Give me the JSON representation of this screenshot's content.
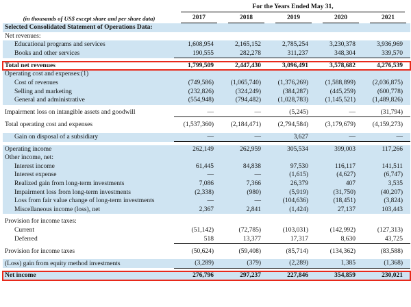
{
  "colors": {
    "row_highlight": "#cfe4f2",
    "annotation_red": "#e8291a"
  },
  "header": {
    "span_label": "For the Years Ended May 31,",
    "unit_note": "(in thousands of US$ except share and per share data)",
    "years": [
      "2017",
      "2018",
      "2019",
      "2020",
      "2021"
    ]
  },
  "rows": [
    {
      "label": "Selected Consolidated Statement of Operations Data:",
      "bold": true,
      "bg": "blue",
      "values": [
        "",
        "",
        "",
        "",
        ""
      ]
    },
    {
      "label": "Net revenues:",
      "bg": "white",
      "values": [
        "",
        "",
        "",
        "",
        ""
      ]
    },
    {
      "label": "Educational programs and services",
      "indent": 1,
      "bg": "blue",
      "values": [
        "1,608,954",
        "2,165,152",
        "2,785,254",
        "3,230,378",
        "3,936,969"
      ]
    },
    {
      "label": "Books and other services",
      "indent": 1,
      "bg": "blue",
      "rule": true,
      "values": [
        "190,555",
        "282,278",
        "311,237",
        "348,304",
        "339,570"
      ]
    },
    {
      "spacer": true
    },
    {
      "label": "Total net revenues",
      "bold": true,
      "bg": "white",
      "boxed": true,
      "values": [
        "1,799,509",
        "2,447,430",
        "3,096,491",
        "3,578,682",
        "4,276,539"
      ]
    },
    {
      "label": "Operating cost and expenses:(1)",
      "bg": "blue",
      "values": [
        "",
        "",
        "",
        "",
        ""
      ]
    },
    {
      "label": "Cost of revenues",
      "indent": 1,
      "bg": "blue",
      "values": [
        "(749,586)",
        "(1,065,740)",
        "(1,376,269)",
        "(1,588,899)",
        "(2,036,875)"
      ]
    },
    {
      "label": "Selling and marketing",
      "indent": 1,
      "bg": "blue",
      "values": [
        "(232,826)",
        "(324,249)",
        "(384,287)",
        "(445,259)",
        "(600,778)"
      ]
    },
    {
      "label": "General and administrative",
      "indent": 1,
      "bg": "blue",
      "values": [
        "(554,948)",
        "(794,482)",
        "(1,028,783)",
        "(1,145,521)",
        "(1,489,826)"
      ]
    },
    {
      "spacer": true
    },
    {
      "label": "Impairment loss on intangible assets and goodwill",
      "bg": "white",
      "rule": true,
      "values": [
        "—",
        "—",
        "(5,245)",
        "—",
        "(31,794)"
      ]
    },
    {
      "spacer": true
    },
    {
      "label": "Total operating cost and expenses",
      "bg": "white",
      "values": [
        "(1,537,360)",
        "(2,184,471)",
        "(2,794,584)",
        "(3,179,679)",
        "(4,159,273)"
      ]
    },
    {
      "spacer": true
    },
    {
      "label": "Gain on disposal of a subsidiary",
      "indent": 1,
      "bg": "blue",
      "rule": true,
      "values": [
        "—",
        "—",
        "3,627",
        "—",
        "—"
      ]
    },
    {
      "spacer": true
    },
    {
      "label": "Operating income",
      "bg": "blue",
      "values": [
        "262,149",
        "262,959",
        "305,534",
        "399,003",
        "117,266"
      ]
    },
    {
      "label": "Other income, net:",
      "bg": "blue",
      "values": [
        "",
        "",
        "",
        "",
        ""
      ]
    },
    {
      "label": "Interest income",
      "indent": 1,
      "bg": "blue",
      "values": [
        "61,445",
        "84,838",
        "97,530",
        "116,117",
        "141,511"
      ]
    },
    {
      "label": "Interest expense",
      "indent": 1,
      "bg": "blue",
      "values": [
        "—",
        "—",
        "(1,615)",
        "(4,627)",
        "(6,747)"
      ]
    },
    {
      "label": "Realized gain from long-term investments",
      "indent": 1,
      "bg": "blue",
      "values": [
        "7,086",
        "7,366",
        "26,379",
        "407",
        "3,535"
      ]
    },
    {
      "label": "Impairment loss from long-term investments",
      "indent": 1,
      "bg": "blue",
      "values": [
        "(2,338)",
        "(980)",
        "(5,919)",
        "(31,750)",
        "(40,207)"
      ]
    },
    {
      "label": "Loss from fair value change of long-term investments",
      "indent": 1,
      "bg": "blue",
      "values": [
        "—",
        "—",
        "(104,636)",
        "(18,451)",
        "(3,824)"
      ]
    },
    {
      "label": "Miscellaneous income (loss), net",
      "indent": 1,
      "bg": "blue",
      "values": [
        "2,367",
        "2,841",
        "(1,424)",
        "27,137",
        "103,443"
      ]
    },
    {
      "spacer": true
    },
    {
      "label": "Provision for income taxes:",
      "bg": "white",
      "values": [
        "",
        "",
        "",
        "",
        ""
      ]
    },
    {
      "label": "Current",
      "indent": 1,
      "bg": "white",
      "values": [
        "(51,142)",
        "(72,785)",
        "(103,031)",
        "(142,992)",
        "(127,313)"
      ]
    },
    {
      "label": "Deferred",
      "indent": 1,
      "bg": "white",
      "rule": true,
      "values": [
        "518",
        "13,377",
        "17,317",
        "8,630",
        "43,725"
      ]
    },
    {
      "spacer": true
    },
    {
      "label": "Provision for income taxes",
      "bg": "white",
      "values": [
        "(50,624)",
        "(59,408)",
        "(85,714)",
        "(134,362)",
        "(83,588)"
      ]
    },
    {
      "spacer": true
    },
    {
      "label": "(Loss) gain from equity method investments",
      "bg": "blue",
      "rule": true,
      "values": [
        "(3,289)",
        "(379)",
        "(2,289)",
        "1,385",
        "(1,368)"
      ]
    },
    {
      "spacer": true
    },
    {
      "label": "Net income",
      "bold": true,
      "bg": "blue",
      "boxed": true,
      "values": [
        "276,796",
        "297,237",
        "227,846",
        "354,859",
        "230,021"
      ]
    }
  ]
}
